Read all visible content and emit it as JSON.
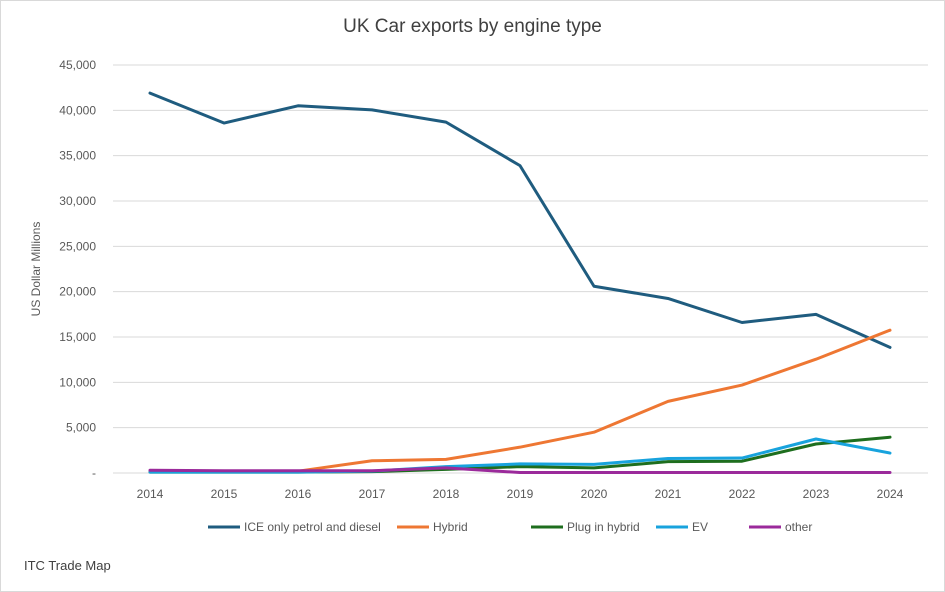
{
  "chart_data": {
    "type": "line",
    "title": "UK Car exports by engine type",
    "xlabel": "",
    "ylabel": "US Dollar Millions",
    "categories": [
      "2014",
      "2015",
      "2016",
      "2017",
      "2018",
      "2019",
      "2020",
      "2021",
      "2022",
      "2023",
      "2024"
    ],
    "ylim": [
      0,
      45000
    ],
    "yticks": [
      0,
      5000,
      10000,
      15000,
      20000,
      25000,
      30000,
      35000,
      40000,
      45000
    ],
    "ytick_labels": [
      "-",
      "5,000",
      "10,000",
      "15,000",
      "20,000",
      "25,000",
      "30,000",
      "35,000",
      "40,000",
      "45,000"
    ],
    "grid": true,
    "legend": "bottom",
    "series": [
      {
        "name": "ICE only petrol and diesel",
        "color": "#1f5c7f",
        "values": [
          41900,
          38600,
          40500,
          40050,
          38700,
          33900,
          20600,
          19250,
          16600,
          17500,
          13850
        ]
      },
      {
        "name": "Hybrid",
        "color": "#ee7733",
        "values": [
          200,
          200,
          200,
          1350,
          1500,
          2850,
          4500,
          7900,
          9700,
          12550,
          15750
        ]
      },
      {
        "name": "Plug in hybrid",
        "color": "#1e6e1e",
        "values": [
          100,
          100,
          100,
          150,
          400,
          700,
          560,
          1250,
          1300,
          3200,
          3950
        ]
      },
      {
        "name": "EV",
        "color": "#18a3dd",
        "values": [
          100,
          100,
          100,
          200,
          700,
          1000,
          950,
          1600,
          1650,
          3750,
          2200
        ]
      },
      {
        "name": "other",
        "color": "#9b2a9b",
        "values": [
          300,
          250,
          250,
          250,
          560,
          50,
          50,
          50,
          50,
          50,
          50
        ]
      }
    ]
  },
  "source": "ITC Trade Map"
}
